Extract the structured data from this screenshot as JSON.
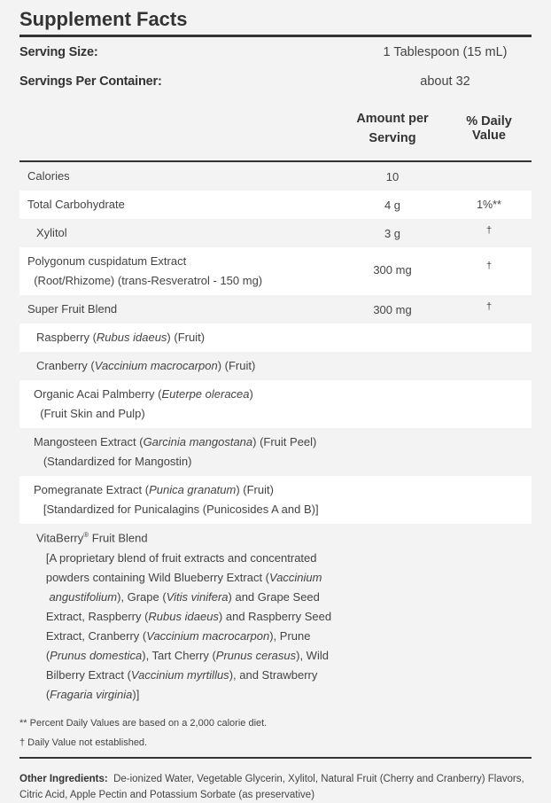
{
  "title": "Supplement Facts",
  "serving_size": {
    "label": "Serving Size:",
    "value": "1 Tablespoon (15 mL)"
  },
  "servings_per_container": {
    "label": "Servings Per Container:",
    "value": "about 32"
  },
  "headers": {
    "amount_line1": "Amount per",
    "amount_line2": "Serving",
    "daily_value": "% Daily Value"
  },
  "rows": [
    {
      "h": 32,
      "indent": 0,
      "lines": [
        [
          {
            "t": "Calories"
          }
        ]
      ],
      "amount": "10",
      "dv": ""
    },
    {
      "h": 32,
      "indent": 0,
      "lines": [
        [
          {
            "t": "Total Carbohydrate"
          }
        ]
      ],
      "amount": "4 g",
      "dv": "1%**"
    },
    {
      "h": 32,
      "indent": 10,
      "lines": [
        [
          {
            "t": "Xylitol"
          }
        ]
      ],
      "amount": "3 g",
      "dv": "†"
    },
    {
      "h": 54,
      "indent": 0,
      "lines": [
        [
          {
            "t": "Polygonum cuspidatum Extract"
          }
        ],
        [
          {
            "t": "  (Root/Rhizome) (trans-Resveratrol - 150 mg)"
          }
        ]
      ],
      "amount": "300 mg",
      "dv": "†"
    },
    {
      "h": 32,
      "indent": 0,
      "lines": [
        [
          {
            "t": "Super Fruit Blend"
          }
        ]
      ],
      "amount": "300 mg",
      "dv": "†"
    },
    {
      "h": 32,
      "indent": 10,
      "lines": [
        [
          {
            "t": "Raspberry ("
          },
          {
            "t": "Rubus idaeus",
            "i": true
          },
          {
            "t": ") (Fruit)"
          }
        ]
      ],
      "amount": "",
      "dv": ""
    },
    {
      "h": 32,
      "indent": 10,
      "lines": [
        [
          {
            "t": "Cranberry ("
          },
          {
            "t": "Vaccinium macrocarpon",
            "i": true
          },
          {
            "t": ") (Fruit)"
          }
        ]
      ],
      "amount": "",
      "dv": ""
    },
    {
      "h": 54,
      "indent": 7,
      "lines": [
        [
          {
            "t": "Organic Acai Palmberry ("
          },
          {
            "t": "Euterpe oleracea",
            "i": true
          },
          {
            "t": ")"
          }
        ],
        [
          {
            "t": "  (Fruit Skin and Pulp)"
          }
        ]
      ],
      "amount": "",
      "dv": ""
    },
    {
      "h": 54,
      "indent": 7,
      "lines": [
        [
          {
            "t": "Mangosteen Extract ("
          },
          {
            "t": "Garcinia mangostana",
            "i": true
          },
          {
            "t": ") (Fruit Peel)"
          }
        ],
        [
          {
            "t": "   (Standardized for Mangostin)"
          }
        ]
      ],
      "amount": "",
      "dv": ""
    },
    {
      "h": 54,
      "indent": 7,
      "lines": [
        [
          {
            "t": "Pomegranate Extract ("
          },
          {
            "t": "Punica granatum",
            "i": true
          },
          {
            "t": ") (Fruit)"
          }
        ],
        [
          {
            "t": "   [Standardized for Punicalagins (Punicosides A and B)]"
          }
        ]
      ],
      "amount": "",
      "dv": ""
    },
    {
      "h": 206,
      "indent": 10,
      "lines": [
        [
          {
            "t": "VitaBerry"
          },
          {
            "t": "®",
            "sup": true
          },
          {
            "t": " Fruit Blend"
          }
        ],
        [
          {
            "t": "   [A proprietary blend of fruit extracts and concentrated"
          }
        ],
        [
          {
            "t": "   powders containing Wild Blueberry Extract ("
          },
          {
            "t": "Vaccinium",
            "i": true
          }
        ],
        [
          {
            "t": "    "
          },
          {
            "t": "angustifolium",
            "i": true
          },
          {
            "t": "), Grape ("
          },
          {
            "t": "Vitis vinifera",
            "i": true
          },
          {
            "t": ") and Grape Seed"
          }
        ],
        [
          {
            "t": "   Extract, Raspberry ("
          },
          {
            "t": "Rubus idaeus",
            "i": true
          },
          {
            "t": ") and Raspberry Seed"
          }
        ],
        [
          {
            "t": "   Extract, Cranberry ("
          },
          {
            "t": "Vaccinium macrocarpon",
            "i": true
          },
          {
            "t": "), Prune"
          }
        ],
        [
          {
            "t": "   ("
          },
          {
            "t": "Prunus domestica",
            "i": true
          },
          {
            "t": "), Tart Cherry ("
          },
          {
            "t": "Prunus cerasus",
            "i": true
          },
          {
            "t": "), Wild"
          }
        ],
        [
          {
            "t": "   Bilberry Extract ("
          },
          {
            "t": "Vaccinium myrtillus",
            "i": true
          },
          {
            "t": "), and Strawberry"
          }
        ],
        [
          {
            "t": "   ("
          },
          {
            "t": "Fragaria virginia",
            "i": true
          },
          {
            "t": ")]"
          }
        ]
      ],
      "amount": "",
      "dv": ""
    }
  ],
  "footnotes": [
    "** Percent Daily Values are based on a 2,000 calorie diet.",
    "† Daily Value not established."
  ],
  "other_ingredients": {
    "label": "Other Ingredients:",
    "text": "De-ionized Water, Vegetable Glycerin, Xylitol, Natural Fruit (Cherry and Cranberry) Flavors, Citric Acid, Apple Pectin and Potassium Sorbate (as preservative)"
  }
}
